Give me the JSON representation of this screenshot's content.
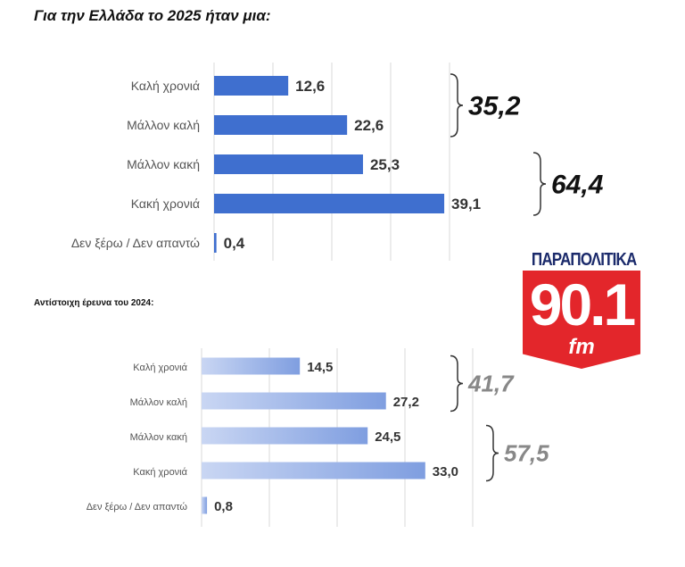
{
  "chart_data": [
    {
      "type": "bar",
      "orientation": "horizontal",
      "title": "Για την Ελλάδα το 2025 ήταν μια:",
      "categories": [
        "Καλή χρονιά",
        "Μάλλον καλή",
        "Μάλλον κακή",
        "Κακή χρονιά",
        "Δεν ξέρω / Δεν απαντώ"
      ],
      "values": [
        12.6,
        22.6,
        25.3,
        39.1,
        0.4
      ],
      "labels": [
        "12,6",
        "22,6",
        "25,3",
        "39,1",
        "0,4"
      ],
      "groups": [
        {
          "label": "35,2",
          "value": 35.2,
          "spans": [
            0,
            1
          ]
        },
        {
          "label": "64,4",
          "value": 64.4,
          "spans": [
            2,
            3
          ]
        }
      ],
      "color": "#3f6fcf",
      "grid": true
    },
    {
      "type": "bar",
      "orientation": "horizontal",
      "title": "Αντίστοιχη έρευνα του 2024:",
      "categories": [
        "Καλή χρονιά",
        "Μάλλον καλή",
        "Μάλλον κακή",
        "Κακή χρονιά",
        "Δεν ξέρω / Δεν απαντώ"
      ],
      "values": [
        14.5,
        27.2,
        24.5,
        33.0,
        0.8
      ],
      "labels": [
        "14,5",
        "27,2",
        "24,5",
        "33,0",
        "0,8"
      ],
      "groups": [
        {
          "label": "41,7",
          "value": 41.7,
          "spans": [
            0,
            1
          ]
        },
        {
          "label": "57,5",
          "value": 57.5,
          "spans": [
            2,
            3
          ]
        }
      ],
      "color": "#8fa9e6",
      "grid": true
    }
  ],
  "logo": {
    "top": "ΠΑΡΑΠΟΛΙΤΙΚΑ",
    "number": "90.1",
    "unit": "fm"
  }
}
